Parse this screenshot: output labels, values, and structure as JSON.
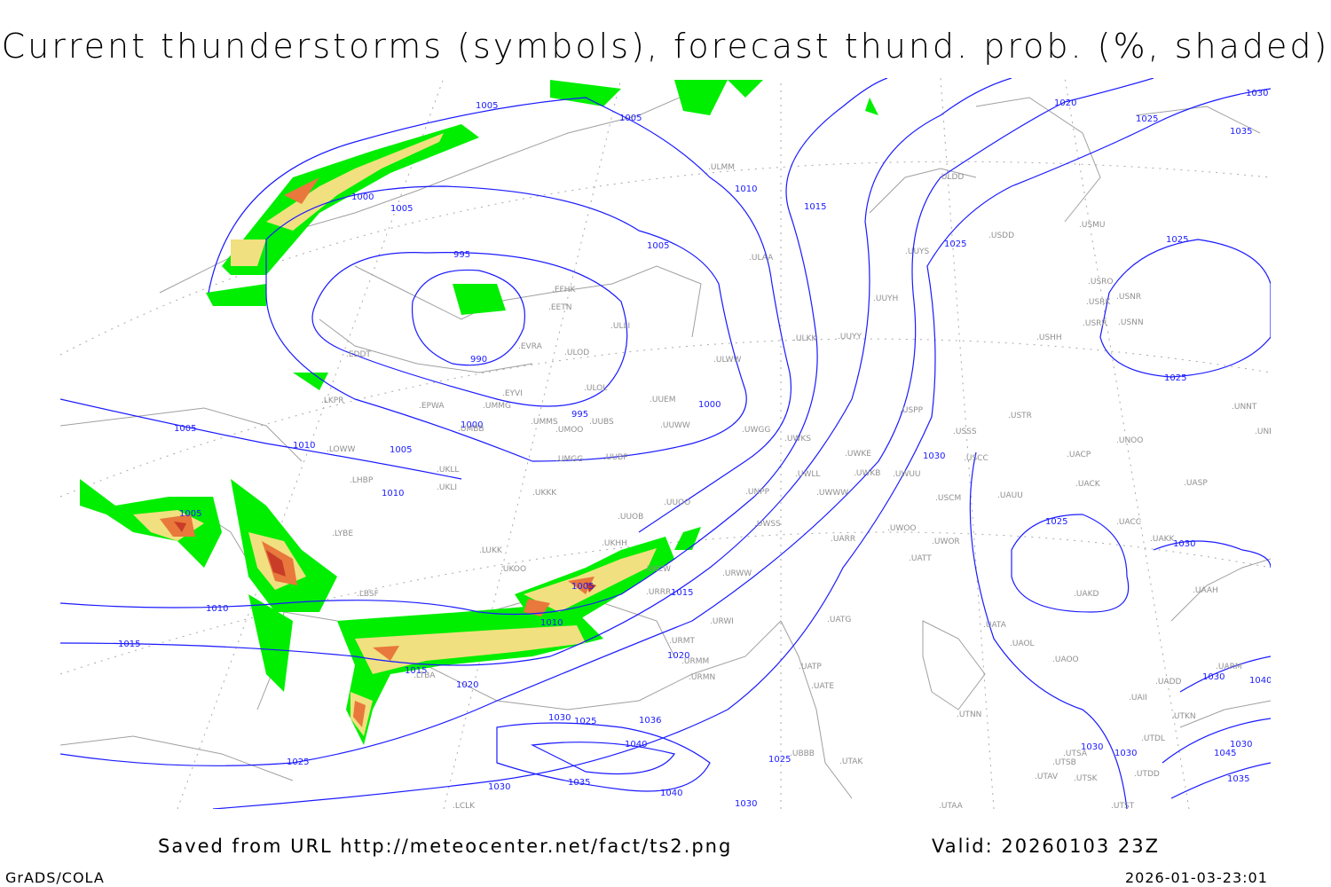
{
  "title": "Current thunderstorms (symbols), forecast thund. prob. (%, shaded)",
  "footer": {
    "saved": "Saved from URL http://meteocenter.net/fact/ts2.png",
    "valid": "Valid: 20260103 23Z",
    "software": "GrADS/COLA",
    "timestamp": "2026-01-03-23:01"
  },
  "colors": {
    "isobar": "#1a1aff",
    "coast": "#a0a0a0",
    "prob_low": "#00ee00",
    "prob_mid": "#f0e080",
    "prob_high": "#e8783c",
    "prob_max": "#c83c28"
  },
  "isobar_labels": [
    "1005",
    "1005",
    "1010",
    "1015",
    "1020",
    "1025",
    "1030",
    "1035",
    "1000",
    "1005",
    "995",
    "990",
    "1005",
    "1025",
    "1025",
    "1025",
    "1000",
    "995",
    "1000",
    "1005",
    "1010",
    "1005",
    "1030",
    "1010",
    "1005",
    "1025",
    "1030",
    "1005",
    "1015",
    "1010",
    "1010",
    "1015",
    "1020",
    "1015",
    "1020",
    "1030",
    "1040",
    "1030",
    "1025",
    "1036",
    "1040",
    "1025",
    "1025",
    "1030",
    "1030",
    "1030",
    "1045",
    "1035",
    "1030",
    "1035",
    "1040",
    "1030"
  ],
  "stations": [
    "ULMM",
    "ULDD",
    "USMU",
    "UUYS",
    "USDD",
    "ULAA",
    "UUYH",
    "EFHK",
    "EETN",
    "ULLI",
    "USRO",
    "USNR",
    "USRK",
    "USRR",
    "USNN",
    "USHH",
    "UUYY",
    "ULKK",
    "EVRA",
    "ULOD",
    "ULWW",
    "EDDT",
    "ULOL",
    "UUEM",
    "EYVI",
    "LKPR",
    "EPWA",
    "UMMG",
    "UMMS",
    "UMOO",
    "UUBS",
    "UUWW",
    "UWGG",
    "USPP",
    "USTR",
    "UNNT",
    "UNBB",
    "UMBB",
    "USSS",
    "UWKS",
    "UNOO",
    "LOWW",
    "UMGG",
    "UUBP",
    "USCC",
    "UACP",
    "UWKE",
    "UWUU",
    "UWKB",
    "UWLL",
    "LHBP",
    "UKLL",
    "UKLI",
    "UKKK",
    "UACK",
    "UASP",
    "UNPP",
    "UWWW",
    "USCM",
    "UAUU",
    "UUOO",
    "UUOB",
    "UACC",
    "LYBE",
    "UWSS",
    "UWOO",
    "UKHH",
    "UARR",
    "UAKK",
    "UWOR",
    "LUKK",
    "UATT",
    "UKOO",
    "UKCW",
    "URWW",
    "LBSF",
    "URRR",
    "UAKD",
    "UAAH",
    "UATG",
    "URWI",
    "UATA",
    "UAOL",
    "UAOO",
    "URMT",
    "URMM",
    "UATP",
    "URMN",
    "UATE",
    "UARM",
    "UADD",
    "UAII",
    "UTNN",
    "UTKN",
    "UTDL",
    "UBBB",
    "UTSA",
    "UTSB",
    "UTAA",
    "UTST",
    "UTAV",
    "UTSK",
    "UTDD",
    "UTAK",
    "LCLK",
    "LTBA"
  ]
}
